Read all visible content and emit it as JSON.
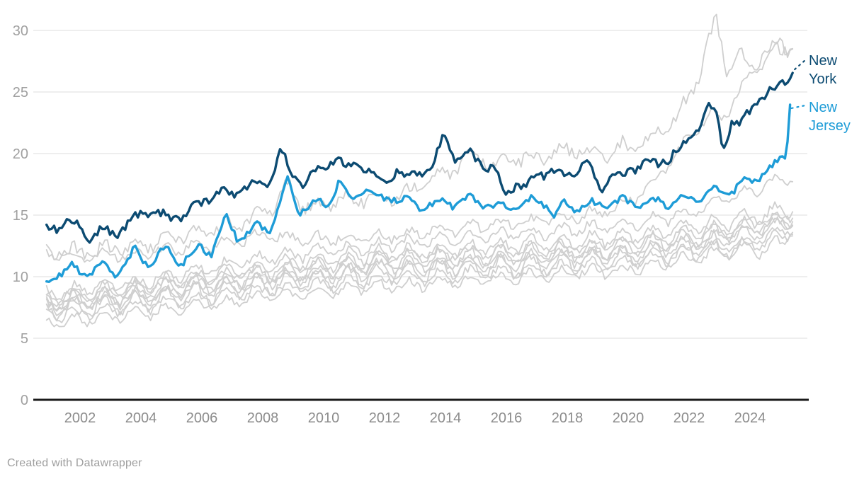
{
  "chart_data": {
    "type": "line",
    "title": "",
    "xlabel": "",
    "ylabel": "",
    "grid": true,
    "legend_position": "direct-labels-right",
    "x_axis": {
      "ticks": [
        2002,
        2004,
        2006,
        2008,
        2010,
        2012,
        2014,
        2016,
        2018,
        2020,
        2022,
        2024
      ],
      "range": [
        2000.87,
        2025.45
      ]
    },
    "y_axis": {
      "ticks": [
        0,
        5,
        10,
        15,
        20,
        25,
        30
      ],
      "range": [
        0,
        31.5
      ]
    },
    "series": [
      {
        "name": "background-1",
        "role": "background",
        "amp": 0.5,
        "noise": 0.5,
        "seed": 11,
        "anchors": [
          [
            2000.9,
            12.1
          ],
          [
            2002,
            12.0
          ],
          [
            2004,
            12.6
          ],
          [
            2006,
            13.6
          ],
          [
            2008,
            15.0
          ],
          [
            2008.8,
            17.3
          ],
          [
            2009.5,
            15.6
          ],
          [
            2010.5,
            16.2
          ],
          [
            2012,
            16.4
          ],
          [
            2013,
            17.0
          ],
          [
            2014,
            18.2
          ],
          [
            2014.9,
            20.2
          ],
          [
            2015.5,
            19.0
          ],
          [
            2016,
            19.4
          ],
          [
            2017,
            19.6
          ],
          [
            2018,
            20.3
          ],
          [
            2019,
            20.0
          ],
          [
            2020,
            20.6
          ],
          [
            2021,
            21.6
          ],
          [
            2022,
            24.2
          ],
          [
            2022.9,
            31.0
          ],
          [
            2023.2,
            26.8
          ],
          [
            2023.6,
            28.0
          ],
          [
            2024,
            27.2
          ],
          [
            2024.5,
            28.3
          ],
          [
            2025,
            28.4
          ],
          [
            2025.45,
            29.0
          ]
        ]
      },
      {
        "name": "background-2",
        "role": "background",
        "amp": 0.4,
        "noise": 0.35,
        "seed": 23,
        "anchors": [
          [
            2000.9,
            11.8
          ],
          [
            2002,
            11.5
          ],
          [
            2004,
            11.9
          ],
          [
            2006,
            12.5
          ],
          [
            2008,
            13.3
          ],
          [
            2010,
            13.0
          ],
          [
            2012,
            13.3
          ],
          [
            2014,
            13.8
          ],
          [
            2016,
            14.3
          ],
          [
            2018,
            14.8
          ],
          [
            2019,
            15.2
          ],
          [
            2020,
            16.0
          ],
          [
            2021,
            18.0
          ],
          [
            2022,
            21.2
          ],
          [
            2022.7,
            23.4
          ],
          [
            2023.1,
            23.0
          ],
          [
            2023.6,
            24.8
          ],
          [
            2024,
            26.3
          ],
          [
            2024.7,
            28.2
          ],
          [
            2025,
            29.3
          ],
          [
            2025.2,
            28.1
          ],
          [
            2025.45,
            29.1
          ]
        ]
      },
      {
        "name": "background-3",
        "role": "background",
        "amp": 0.5,
        "noise": 0.3,
        "seed": 31,
        "anchors": [
          [
            2000.9,
            8.6
          ],
          [
            2004,
            9.6
          ],
          [
            2008,
            11.5
          ],
          [
            2012,
            12.6
          ],
          [
            2016,
            13.4
          ],
          [
            2020,
            14.2
          ],
          [
            2022,
            15.2
          ],
          [
            2024,
            17.0
          ],
          [
            2025.45,
            18.3
          ]
        ]
      },
      {
        "name": "background-4",
        "role": "background",
        "amp": 0.6,
        "noise": 0.3,
        "seed": 41,
        "anchors": [
          [
            2000.9,
            8.3
          ],
          [
            2004,
            9.2
          ],
          [
            2008,
            10.9
          ],
          [
            2012,
            11.9
          ],
          [
            2016,
            12.5
          ],
          [
            2020,
            13.2
          ],
          [
            2024,
            14.8
          ],
          [
            2025.45,
            15.6
          ]
        ]
      },
      {
        "name": "background-5",
        "role": "background",
        "amp": 0.5,
        "noise": 0.3,
        "seed": 47,
        "anchors": [
          [
            2000.9,
            8.0
          ],
          [
            2004,
            9.0
          ],
          [
            2008,
            10.5
          ],
          [
            2012,
            11.5
          ],
          [
            2016,
            12.1
          ],
          [
            2020,
            12.8
          ],
          [
            2024,
            14.3
          ],
          [
            2025.45,
            15.2
          ]
        ]
      },
      {
        "name": "background-6",
        "role": "background",
        "amp": 0.75,
        "noise": 0.3,
        "seed": 53,
        "anchors": [
          [
            2000.9,
            7.9
          ],
          [
            2004,
            8.7
          ],
          [
            2008,
            10.2
          ],
          [
            2012,
            11.2
          ],
          [
            2016,
            11.8
          ],
          [
            2020,
            12.4
          ],
          [
            2024,
            14.0
          ],
          [
            2025.45,
            14.9
          ]
        ]
      },
      {
        "name": "background-7",
        "role": "background",
        "amp": 0.45,
        "noise": 0.3,
        "seed": 59,
        "anchors": [
          [
            2000.9,
            7.7
          ],
          [
            2004,
            8.5
          ],
          [
            2008,
            9.9
          ],
          [
            2012,
            10.9
          ],
          [
            2016,
            11.4
          ],
          [
            2020,
            12.1
          ],
          [
            2024,
            13.7
          ],
          [
            2025.45,
            14.6
          ]
        ]
      },
      {
        "name": "background-8",
        "role": "background",
        "amp": 0.6,
        "noise": 0.3,
        "seed": 61,
        "anchors": [
          [
            2000.9,
            7.5
          ],
          [
            2004,
            8.3
          ],
          [
            2008,
            9.6
          ],
          [
            2012,
            10.6
          ],
          [
            2016,
            11.1
          ],
          [
            2020,
            11.8
          ],
          [
            2024,
            13.4
          ],
          [
            2025.45,
            14.4
          ]
        ]
      },
      {
        "name": "background-9",
        "role": "background",
        "amp": 0.8,
        "noise": 0.35,
        "seed": 67,
        "anchors": [
          [
            2000.9,
            7.2
          ],
          [
            2004,
            8.0
          ],
          [
            2008,
            9.3
          ],
          [
            2012,
            10.2
          ],
          [
            2016,
            10.8
          ],
          [
            2020,
            11.5
          ],
          [
            2023.5,
            12.3
          ],
          [
            2024.8,
            12.3
          ],
          [
            2025.45,
            14.1
          ]
        ]
      },
      {
        "name": "background-10",
        "role": "background",
        "amp": 0.5,
        "noise": 0.3,
        "seed": 71,
        "anchors": [
          [
            2000.9,
            6.8
          ],
          [
            2004,
            7.6
          ],
          [
            2008,
            8.9
          ],
          [
            2012,
            9.8
          ],
          [
            2016,
            10.4
          ],
          [
            2020,
            11.1
          ],
          [
            2024,
            12.9
          ],
          [
            2025.45,
            14.0
          ]
        ]
      },
      {
        "name": "background-11",
        "role": "background",
        "amp": 0.45,
        "noise": 0.3,
        "seed": 73,
        "anchors": [
          [
            2000.9,
            6.2
          ],
          [
            2004,
            7.0
          ],
          [
            2008,
            8.3
          ],
          [
            2012,
            9.2
          ],
          [
            2016,
            9.9
          ],
          [
            2020,
            10.6
          ],
          [
            2024,
            12.4
          ],
          [
            2025.45,
            13.7
          ]
        ]
      },
      {
        "name": "New Jersey",
        "role": "highlight",
        "color": "#1E9CD7",
        "amp": 0.2,
        "noise": 0.25,
        "seed": 8,
        "label_lines": [
          "New",
          "Jersey"
        ],
        "anchors": [
          [
            2000.9,
            9.6
          ],
          [
            2001.3,
            10.2
          ],
          [
            2001.7,
            11.0
          ],
          [
            2002.1,
            10.1
          ],
          [
            2002.8,
            11.1
          ],
          [
            2003.2,
            10.0
          ],
          [
            2003.8,
            12.2
          ],
          [
            2004.2,
            10.9
          ],
          [
            2004.8,
            12.4
          ],
          [
            2005.3,
            11.0
          ],
          [
            2005.9,
            12.5
          ],
          [
            2006.3,
            11.8
          ],
          [
            2006.8,
            14.8
          ],
          [
            2007.2,
            12.9
          ],
          [
            2007.8,
            14.3
          ],
          [
            2008.2,
            13.6
          ],
          [
            2008.8,
            17.8
          ],
          [
            2009.2,
            15.3
          ],
          [
            2009.8,
            16.2
          ],
          [
            2010.1,
            15.8
          ],
          [
            2010.5,
            17.7
          ],
          [
            2010.9,
            16.2
          ],
          [
            2011.4,
            17.3
          ],
          [
            2011.8,
            16.3
          ],
          [
            2012.2,
            16.4
          ],
          [
            2012.8,
            16.3
          ],
          [
            2013.2,
            15.6
          ],
          [
            2013.8,
            16.2
          ],
          [
            2014.3,
            15.8
          ],
          [
            2014.8,
            16.4
          ],
          [
            2015.3,
            15.9
          ],
          [
            2015.8,
            15.7
          ],
          [
            2016.3,
            15.5
          ],
          [
            2016.8,
            16.2
          ],
          [
            2017.3,
            15.9
          ],
          [
            2017.6,
            14.8
          ],
          [
            2017.9,
            16.0
          ],
          [
            2018.3,
            15.4
          ],
          [
            2018.8,
            16.0
          ],
          [
            2019.3,
            15.7
          ],
          [
            2019.8,
            16.3
          ],
          [
            2020.3,
            15.8
          ],
          [
            2020.8,
            16.3
          ],
          [
            2021.3,
            15.9
          ],
          [
            2021.8,
            16.5
          ],
          [
            2022.3,
            16.1
          ],
          [
            2022.8,
            17.2
          ],
          [
            2023.3,
            16.6
          ],
          [
            2023.8,
            17.8
          ],
          [
            2024.2,
            17.9
          ],
          [
            2024.6,
            18.6
          ],
          [
            2025.0,
            19.5
          ],
          [
            2025.2,
            20.0
          ],
          [
            2025.35,
            25.2
          ]
        ]
      },
      {
        "name": "New York",
        "role": "highlight",
        "color": "#0C4B72",
        "amp": 0.3,
        "noise": 0.3,
        "seed": 3,
        "label_lines": [
          "New",
          "York"
        ],
        "anchors": [
          [
            2000.9,
            13.9
          ],
          [
            2001.3,
            14.1
          ],
          [
            2001.6,
            14.4
          ],
          [
            2002.0,
            13.9
          ],
          [
            2002.3,
            13.2
          ],
          [
            2002.8,
            13.9
          ],
          [
            2003.1,
            13.4
          ],
          [
            2003.6,
            14.4
          ],
          [
            2004.0,
            15.0
          ],
          [
            2004.5,
            15.3
          ],
          [
            2004.9,
            14.6
          ],
          [
            2005.3,
            14.9
          ],
          [
            2005.8,
            15.6
          ],
          [
            2006.2,
            16.3
          ],
          [
            2006.7,
            17.2
          ],
          [
            2007.0,
            16.5
          ],
          [
            2007.4,
            17.3
          ],
          [
            2007.8,
            17.6
          ],
          [
            2008.2,
            17.4
          ],
          [
            2008.6,
            20.5
          ],
          [
            2008.9,
            18.3
          ],
          [
            2009.3,
            17.7
          ],
          [
            2009.8,
            18.6
          ],
          [
            2010.1,
            18.8
          ],
          [
            2010.4,
            19.9
          ],
          [
            2010.8,
            18.6
          ],
          [
            2011.2,
            19.2
          ],
          [
            2011.6,
            18.3
          ],
          [
            2012.0,
            17.4
          ],
          [
            2012.4,
            18.7
          ],
          [
            2012.8,
            18.0
          ],
          [
            2013.2,
            18.4
          ],
          [
            2013.6,
            19.1
          ],
          [
            2013.98,
            21.5
          ],
          [
            2014.3,
            19.6
          ],
          [
            2014.8,
            19.9
          ],
          [
            2015.2,
            19.2
          ],
          [
            2015.6,
            18.7
          ],
          [
            2015.95,
            16.6
          ],
          [
            2016.3,
            17.6
          ],
          [
            2016.7,
            17.3
          ],
          [
            2017.1,
            18.3
          ],
          [
            2017.5,
            18.6
          ],
          [
            2017.9,
            18.1
          ],
          [
            2018.3,
            18.8
          ],
          [
            2018.7,
            19.3
          ],
          [
            2019.07,
            16.9
          ],
          [
            2019.4,
            18.3
          ],
          [
            2019.8,
            17.9
          ],
          [
            2020.2,
            18.9
          ],
          [
            2020.6,
            19.4
          ],
          [
            2021.0,
            19.0
          ],
          [
            2021.4,
            19.9
          ],
          [
            2021.8,
            20.6
          ],
          [
            2022.2,
            21.7
          ],
          [
            2022.6,
            24.0
          ],
          [
            2022.9,
            23.2
          ],
          [
            2023.1,
            20.2
          ],
          [
            2023.4,
            22.6
          ],
          [
            2023.7,
            22.2
          ],
          [
            2024.0,
            23.4
          ],
          [
            2024.3,
            24.4
          ],
          [
            2024.6,
            24.9
          ],
          [
            2024.9,
            25.3
          ],
          [
            2025.1,
            25.9
          ],
          [
            2025.45,
            26.7
          ]
        ]
      }
    ]
  },
  "colors": {
    "new_york": "#0C4B72",
    "new_jersey": "#1E9CD7",
    "background_lines": "#CFCFCF",
    "grid": "#E4E4E4",
    "axis": "#1A1A1A",
    "tick_text_y": "#A0A0A0",
    "tick_text_x": "#8C8C8C"
  },
  "footer": {
    "credit": "Created with Datawrapper"
  }
}
